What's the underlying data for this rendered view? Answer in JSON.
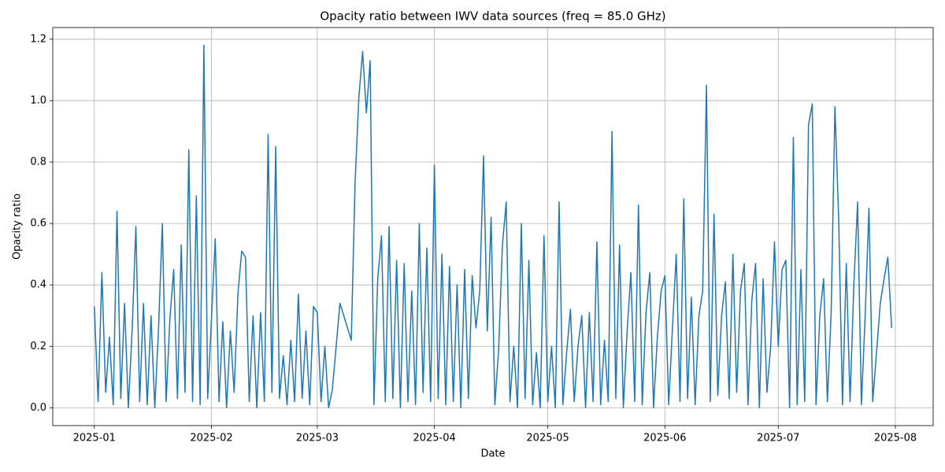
{
  "chart_data": {
    "type": "line",
    "title": "Opacity ratio between IWV data sources (freq = 85.0 GHz)",
    "x_label": "Date",
    "y_label": "Opacity ratio",
    "x": [
      "2025-01-01",
      "2025-01-02",
      "2025-01-03",
      "2025-01-04",
      "2025-01-05",
      "2025-01-06",
      "2025-01-07",
      "2025-01-08",
      "2025-01-09",
      "2025-01-10",
      "2025-01-11",
      "2025-01-12",
      "2025-01-13",
      "2025-01-14",
      "2025-01-15",
      "2025-01-16",
      "2025-01-17",
      "2025-01-18",
      "2025-01-19",
      "2025-01-20",
      "2025-01-21",
      "2025-01-22",
      "2025-01-23",
      "2025-01-24",
      "2025-01-25",
      "2025-01-26",
      "2025-01-27",
      "2025-01-28",
      "2025-01-29",
      "2025-01-30",
      "2025-01-31",
      "2025-02-01",
      "2025-02-02",
      "2025-02-03",
      "2025-02-04",
      "2025-02-05",
      "2025-02-06",
      "2025-02-07",
      "2025-02-08",
      "2025-02-09",
      "2025-02-10",
      "2025-02-11",
      "2025-02-12",
      "2025-02-13",
      "2025-02-14",
      "2025-02-15",
      "2025-02-16",
      "2025-02-17",
      "2025-02-18",
      "2025-02-19",
      "2025-02-20",
      "2025-02-21",
      "2025-02-22",
      "2025-02-23",
      "2025-02-24",
      "2025-02-25",
      "2025-02-26",
      "2025-02-27",
      "2025-02-28",
      "2025-03-01",
      "2025-03-02",
      "2025-03-03",
      "2025-03-04",
      "2025-03-05",
      "2025-03-07",
      "2025-03-10",
      "2025-03-11",
      "2025-03-12",
      "2025-03-13",
      "2025-03-14",
      "2025-03-15",
      "2025-03-16",
      "2025-03-17",
      "2025-03-18",
      "2025-03-19",
      "2025-03-20",
      "2025-03-21",
      "2025-03-22",
      "2025-03-23",
      "2025-03-24",
      "2025-03-25",
      "2025-03-26",
      "2025-03-27",
      "2025-03-28",
      "2025-03-29",
      "2025-03-30",
      "2025-03-31",
      "2025-04-01",
      "2025-04-02",
      "2025-04-03",
      "2025-04-04",
      "2025-04-05",
      "2025-04-06",
      "2025-04-07",
      "2025-04-08",
      "2025-04-09",
      "2025-04-10",
      "2025-04-11",
      "2025-04-12",
      "2025-04-13",
      "2025-04-14",
      "2025-04-15",
      "2025-04-16",
      "2025-04-17",
      "2025-04-18",
      "2025-04-19",
      "2025-04-20",
      "2025-04-21",
      "2025-04-22",
      "2025-04-23",
      "2025-04-24",
      "2025-04-25",
      "2025-04-26",
      "2025-04-27",
      "2025-04-28",
      "2025-04-29",
      "2025-04-30",
      "2025-05-01",
      "2025-05-02",
      "2025-05-03",
      "2025-05-04",
      "2025-05-05",
      "2025-05-06",
      "2025-05-07",
      "2025-05-08",
      "2025-05-09",
      "2025-05-10",
      "2025-05-11",
      "2025-05-12",
      "2025-05-13",
      "2025-05-14",
      "2025-05-15",
      "2025-05-16",
      "2025-05-17",
      "2025-05-18",
      "2025-05-19",
      "2025-05-20",
      "2025-05-21",
      "2025-05-22",
      "2025-05-23",
      "2025-05-24",
      "2025-05-25",
      "2025-05-26",
      "2025-05-27",
      "2025-05-28",
      "2025-05-29",
      "2025-05-30",
      "2025-05-31",
      "2025-06-01",
      "2025-06-02",
      "2025-06-03",
      "2025-06-04",
      "2025-06-05",
      "2025-06-06",
      "2025-06-07",
      "2025-06-08",
      "2025-06-09",
      "2025-06-10",
      "2025-06-11",
      "2025-06-12",
      "2025-06-13",
      "2025-06-14",
      "2025-06-15",
      "2025-06-16",
      "2025-06-17",
      "2025-06-18",
      "2025-06-19",
      "2025-06-20",
      "2025-06-21",
      "2025-06-22",
      "2025-06-23",
      "2025-06-24",
      "2025-06-25",
      "2025-06-26",
      "2025-06-27",
      "2025-06-28",
      "2025-06-29",
      "2025-06-30",
      "2025-07-01",
      "2025-07-02",
      "2025-07-03",
      "2025-07-04",
      "2025-07-05",
      "2025-07-06",
      "2025-07-07",
      "2025-07-08",
      "2025-07-09",
      "2025-07-10",
      "2025-07-11",
      "2025-07-12",
      "2025-07-13",
      "2025-07-14",
      "2025-07-15",
      "2025-07-16",
      "2025-07-17",
      "2025-07-18",
      "2025-07-19",
      "2025-07-20",
      "2025-07-21",
      "2025-07-22",
      "2025-07-23",
      "2025-07-24",
      "2025-07-25",
      "2025-07-26",
      "2025-07-28",
      "2025-07-29",
      "2025-07-30",
      "2025-07-31"
    ],
    "series": [
      {
        "color": "#1f77b4",
        "values": [
          0.33,
          0.02,
          0.44,
          0.05,
          0.23,
          0.01,
          0.64,
          0.03,
          0.34,
          0.0,
          0.25,
          0.59,
          0.02,
          0.34,
          0.01,
          0.3,
          0.0,
          0.26,
          0.6,
          0.02,
          0.29,
          0.45,
          0.03,
          0.53,
          0.05,
          0.84,
          0.02,
          0.69,
          0.01,
          1.18,
          0.03,
          0.29,
          0.55,
          0.02,
          0.28,
          0.0,
          0.25,
          0.05,
          0.37,
          0.51,
          0.49,
          0.02,
          0.3,
          0.0,
          0.31,
          0.02,
          0.89,
          0.05,
          0.85,
          0.03,
          0.17,
          0.01,
          0.22,
          0.02,
          0.37,
          0.03,
          0.25,
          0.01,
          0.33,
          0.31,
          0.02,
          0.2,
          0.0,
          0.06,
          0.34,
          0.22,
          0.73,
          1.01,
          1.16,
          0.96,
          1.13,
          0.01,
          0.42,
          0.56,
          0.02,
          0.59,
          0.03,
          0.48,
          0.0,
          0.47,
          0.02,
          0.38,
          0.01,
          0.6,
          0.05,
          0.52,
          0.02,
          0.79,
          0.03,
          0.5,
          0.01,
          0.46,
          0.02,
          0.4,
          0.0,
          0.45,
          0.03,
          0.43,
          0.26,
          0.38,
          0.82,
          0.25,
          0.62,
          0.01,
          0.19,
          0.53,
          0.67,
          0.02,
          0.2,
          0.0,
          0.6,
          0.03,
          0.48,
          0.01,
          0.18,
          0.0,
          0.56,
          0.02,
          0.2,
          0.0,
          0.67,
          0.01,
          0.18,
          0.32,
          0.02,
          0.2,
          0.3,
          0.0,
          0.31,
          0.02,
          0.54,
          0.01,
          0.22,
          0.02,
          0.9,
          0.03,
          0.53,
          0.0,
          0.25,
          0.44,
          0.02,
          0.66,
          0.01,
          0.31,
          0.44,
          0.0,
          0.23,
          0.38,
          0.43,
          0.01,
          0.26,
          0.5,
          0.02,
          0.68,
          0.03,
          0.36,
          0.01,
          0.3,
          0.38,
          1.05,
          0.02,
          0.63,
          0.04,
          0.3,
          0.41,
          0.03,
          0.5,
          0.05,
          0.38,
          0.47,
          0.01,
          0.35,
          0.47,
          0.0,
          0.42,
          0.05,
          0.2,
          0.54,
          0.2,
          0.45,
          0.48,
          0.0,
          0.88,
          0.01,
          0.45,
          0.02,
          0.92,
          0.99,
          0.01,
          0.3,
          0.42,
          0.02,
          0.31,
          0.98,
          0.61,
          0.01,
          0.47,
          0.02,
          0.4,
          0.67,
          0.01,
          0.3,
          0.65,
          0.02,
          0.34,
          0.42,
          0.49,
          0.26
        ]
      }
    ],
    "xlim": [
      "2024-12-21",
      "2025-08-11"
    ],
    "xticks": [
      {
        "value": "2025-01-01",
        "label": "2025-01"
      },
      {
        "value": "2025-02-01",
        "label": "2025-02"
      },
      {
        "value": "2025-03-01",
        "label": "2025-03"
      },
      {
        "value": "2025-04-01",
        "label": "2025-04"
      },
      {
        "value": "2025-05-01",
        "label": "2025-05"
      },
      {
        "value": "2025-06-01",
        "label": "2025-06"
      },
      {
        "value": "2025-07-01",
        "label": "2025-07"
      },
      {
        "value": "2025-08-01",
        "label": "2025-08"
      }
    ],
    "ylim": [
      -0.058,
      1.238
    ],
    "yticks": [
      {
        "value": 0,
        "label": "0.0"
      },
      0.2,
      0.4,
      0.6,
      0.8,
      {
        "value": 1,
        "label": "1.0"
      },
      1.2
    ],
    "grid": true
  }
}
